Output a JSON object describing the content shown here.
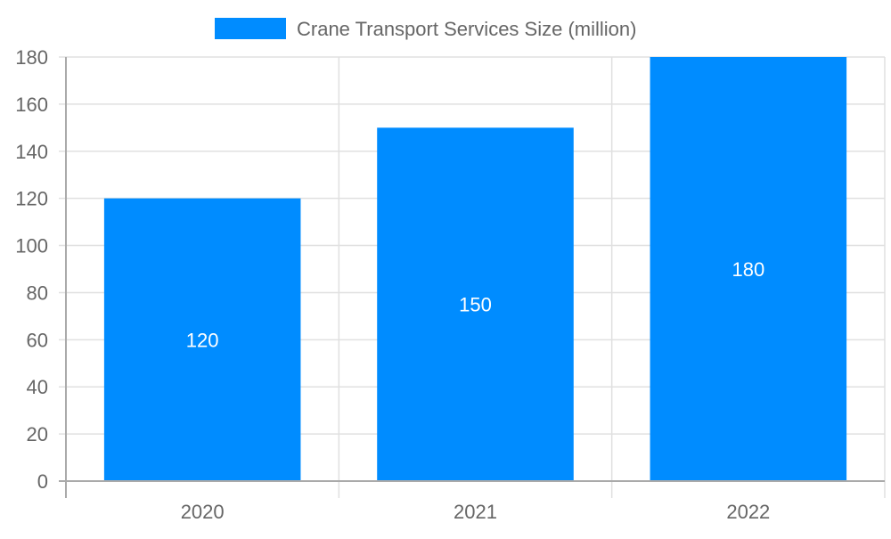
{
  "chart_data": {
    "type": "bar",
    "categories": [
      "2020",
      "2021",
      "2022"
    ],
    "series": [
      {
        "name": "Crane Transport Services Size (million)",
        "values": [
          120,
          150,
          180
        ],
        "color": "#008cff"
      }
    ],
    "yticks": [
      "0",
      "20",
      "40",
      "60",
      "80",
      "100",
      "120",
      "140",
      "160",
      "180"
    ],
    "ylim": [
      0,
      180
    ],
    "xlabel": "",
    "ylabel": "",
    "grid": true,
    "legend_position": "top",
    "data_labels": [
      "120",
      "150",
      "180"
    ]
  }
}
